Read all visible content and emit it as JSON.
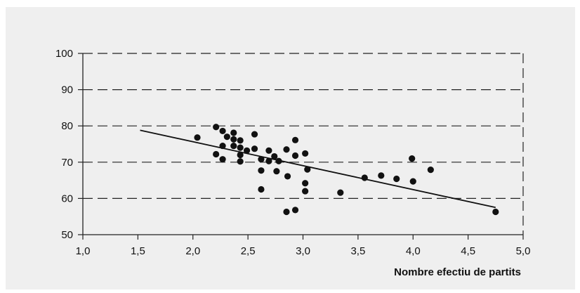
{
  "chart_data": {
    "type": "scatter",
    "title": "",
    "xlabel": "Nombre efectiu de partits",
    "ylabel": "",
    "xlim": [
      1.0,
      5.0
    ],
    "ylim": [
      50,
      100
    ],
    "x_ticks": [
      "1,0",
      "1,5",
      "2,0",
      "2,5",
      "3,0",
      "3,5",
      "4,0",
      "4,5",
      "5,0"
    ],
    "y_ticks": [
      "50",
      "60",
      "70",
      "80",
      "90",
      "100"
    ],
    "grid": "horizontal dashed",
    "points": [
      [
        2.04,
        76.8
      ],
      [
        2.21,
        79.7
      ],
      [
        2.21,
        72.2
      ],
      [
        2.27,
        78.6
      ],
      [
        2.27,
        74.5
      ],
      [
        2.27,
        70.8
      ],
      [
        2.31,
        77.0
      ],
      [
        2.37,
        78.1
      ],
      [
        2.37,
        76.3
      ],
      [
        2.37,
        74.5
      ],
      [
        2.43,
        76.0
      ],
      [
        2.43,
        74.0
      ],
      [
        2.43,
        72.0
      ],
      [
        2.43,
        70.2
      ],
      [
        2.49,
        73.2
      ],
      [
        2.56,
        77.7
      ],
      [
        2.56,
        73.7
      ],
      [
        2.62,
        70.8
      ],
      [
        2.62,
        67.7
      ],
      [
        2.62,
        62.5
      ],
      [
        2.69,
        73.2
      ],
      [
        2.69,
        70.3
      ],
      [
        2.74,
        71.6
      ],
      [
        2.76,
        67.5
      ],
      [
        2.78,
        70.3
      ],
      [
        2.85,
        73.5
      ],
      [
        2.86,
        66.1
      ],
      [
        2.85,
        56.3
      ],
      [
        2.93,
        76.1
      ],
      [
        2.93,
        71.8
      ],
      [
        2.93,
        56.8
      ],
      [
        3.02,
        72.4
      ],
      [
        3.04,
        68.0
      ],
      [
        3.02,
        64.2
      ],
      [
        3.02,
        62.0
      ],
      [
        3.34,
        61.6
      ],
      [
        3.56,
        65.7
      ],
      [
        3.71,
        66.3
      ],
      [
        3.85,
        65.4
      ],
      [
        3.99,
        71.0
      ],
      [
        4.0,
        64.7
      ],
      [
        4.16,
        67.9
      ],
      [
        4.75,
        56.3
      ]
    ],
    "trendline": {
      "x": [
        1.52,
        4.75
      ],
      "y": [
        78.8,
        57.5
      ]
    },
    "colors": {
      "points": "#111111",
      "line": "#111111",
      "grid": "#222222",
      "background": "#efefef"
    }
  }
}
